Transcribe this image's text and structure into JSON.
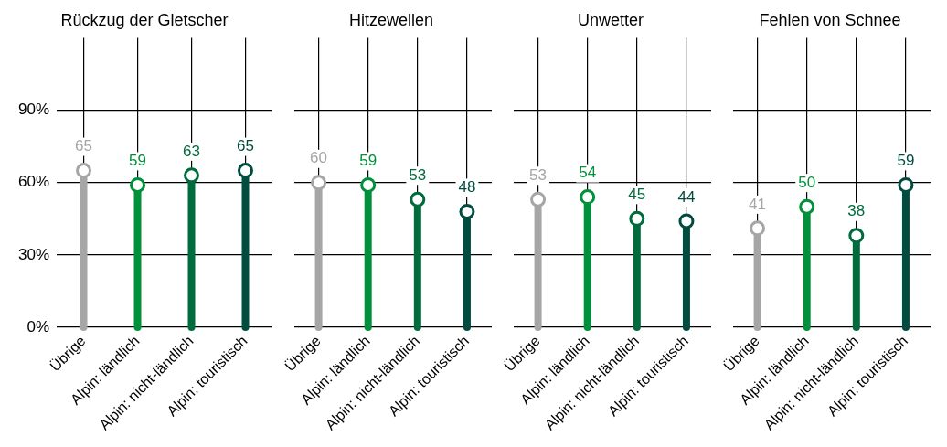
{
  "chart_data": [
    {
      "type": "lollipop",
      "title": "Rückzug der Gletscher",
      "categories": [
        "Übrige",
        "Alpin: ländlich",
        "Alpin: nicht-ländlich",
        "Alpin: touristisch"
      ],
      "values": [
        65,
        59,
        63,
        65
      ],
      "colors": [
        "#a6a6a6",
        "#00913a",
        "#006b3c",
        "#004c3f"
      ],
      "ylim": [
        0,
        120
      ],
      "yticks": [
        {
          "value": 0,
          "label": "0%"
        },
        {
          "value": 30,
          "label": "30%"
        },
        {
          "value": 60,
          "label": "60%"
        },
        {
          "value": 90,
          "label": "90%"
        }
      ],
      "grid": true,
      "data_labels": true,
      "marker": "circle"
    },
    {
      "type": "lollipop",
      "title": "Hitzewellen",
      "categories": [
        "Übrige",
        "Alpin: ländlich",
        "Alpin: nicht-ländlich",
        "Alpin: touristisch"
      ],
      "values": [
        60,
        59,
        53,
        48
      ],
      "colors": [
        "#a6a6a6",
        "#00913a",
        "#006b3c",
        "#004c3f"
      ],
      "ylim": [
        0,
        120
      ],
      "yticks": [
        {
          "value": 0,
          "label": null
        },
        {
          "value": 30,
          "label": null
        },
        {
          "value": 60,
          "label": null
        },
        {
          "value": 90,
          "label": null
        }
      ],
      "grid": true,
      "data_labels": true,
      "marker": "circle",
      "tick_labels": "x"
    },
    {
      "type": "lollipop",
      "title": "Unwetter",
      "categories": [
        "Übrige",
        "Alpin: ländlich",
        "Alpin: nicht-ländlich",
        "Alpin: touristisch"
      ],
      "values": [
        53,
        54,
        45,
        44
      ],
      "colors": [
        "#a6a6a6",
        "#00913a",
        "#006b3c",
        "#004c3f"
      ],
      "ylim": [
        0,
        120
      ],
      "yticks": [
        {
          "value": 0,
          "label": null
        },
        {
          "value": 30,
          "label": null
        },
        {
          "value": 60,
          "label": null
        },
        {
          "value": 90,
          "label": null
        }
      ],
      "grid": true,
      "data_labels": true,
      "marker": "circle",
      "tick_labels": "x"
    },
    {
      "type": "lollipop",
      "title": "Fehlen von Schnee",
      "categories": [
        "Übrige",
        "Alpin: ländlich",
        "Alpin: nicht-ländlich",
        "Alpin: touristisch"
      ],
      "values": [
        41,
        50,
        38,
        59
      ],
      "colors": [
        "#a6a6a6",
        "#00913a",
        "#006b3c",
        "#004c3f"
      ],
      "ylim": [
        0,
        120
      ],
      "yticks": [
        {
          "value": 0,
          "label": null
        },
        {
          "value": 30,
          "label": null
        },
        {
          "value": 60,
          "label": null
        },
        {
          "value": 90,
          "label": null
        }
      ],
      "grid": true,
      "data_labels": true,
      "marker": "circle",
      "tick_labels": "x"
    }
  ]
}
